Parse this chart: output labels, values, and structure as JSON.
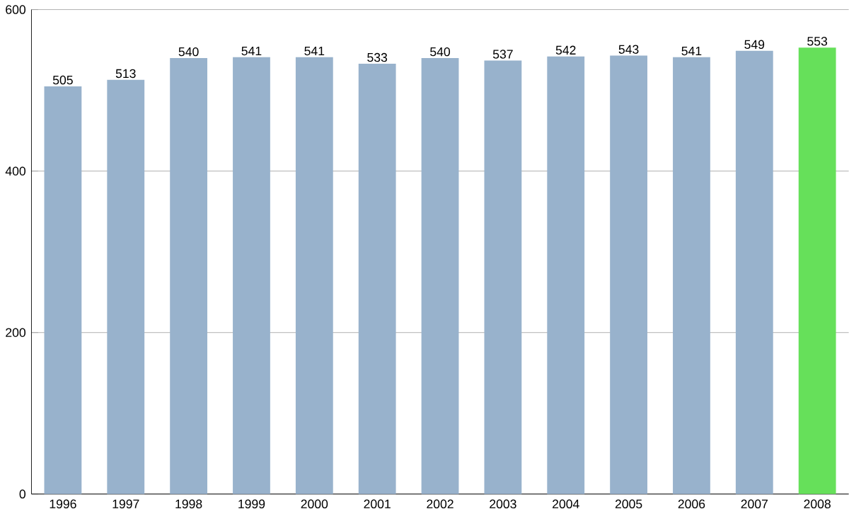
{
  "chart_data": {
    "type": "bar",
    "categories": [
      "1996",
      "1997",
      "1998",
      "1999",
      "2000",
      "2001",
      "2002",
      "2003",
      "2004",
      "2005",
      "2006",
      "2007",
      "2008"
    ],
    "values": [
      505,
      513,
      540,
      541,
      541,
      533,
      540,
      537,
      542,
      543,
      541,
      549,
      553
    ],
    "colors": [
      "#98b2cc",
      "#98b2cc",
      "#98b2cc",
      "#98b2cc",
      "#98b2cc",
      "#98b2cc",
      "#98b2cc",
      "#98b2cc",
      "#98b2cc",
      "#98b2cc",
      "#98b2cc",
      "#98b2cc",
      "#66e05a"
    ],
    "ylim": [
      0,
      600
    ],
    "yticks": [
      0,
      200,
      400,
      600
    ],
    "grid": "y",
    "data_labels": true
  }
}
